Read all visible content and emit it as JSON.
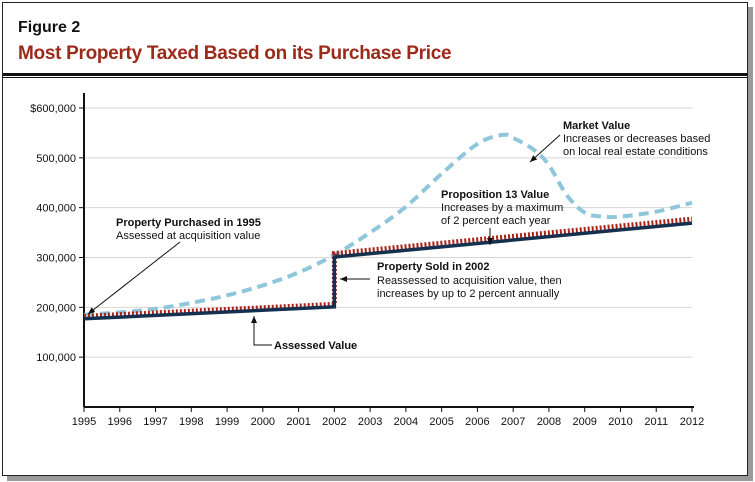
{
  "figure_label": "Figure 2",
  "title": "Most Property Taxed Based on its Purchase Price",
  "chart_data": {
    "type": "line",
    "title": "Most Property Taxed Based on its Purchase Price",
    "xlabel": "",
    "ylabel": "",
    "xlim": [
      1995,
      2012
    ],
    "ylim": [
      0,
      600000
    ],
    "x_ticks": [
      "1995",
      "1996",
      "1997",
      "1998",
      "1999",
      "2000",
      "2001",
      "2002",
      "2003",
      "2004",
      "2005",
      "2006",
      "2007",
      "2008",
      "2009",
      "2010",
      "2011",
      "2012"
    ],
    "y_ticks": [
      {
        "v": 100000,
        "label": "100,000"
      },
      {
        "v": 200000,
        "label": "200,000"
      },
      {
        "v": 300000,
        "label": "300,000"
      },
      {
        "v": 400000,
        "label": "400,000"
      },
      {
        "v": 500000,
        "label": "500,000"
      },
      {
        "v": 600000,
        "label": "$600,000"
      }
    ],
    "grid": "horizontal",
    "series": [
      {
        "name": "Market Value",
        "style": "dashed",
        "color": "#8ec7dc",
        "points": [
          [
            1995,
            185000
          ],
          [
            1996,
            190000
          ],
          [
            1997,
            197000
          ],
          [
            1998,
            209000
          ],
          [
            1999,
            224000
          ],
          [
            2000,
            244000
          ],
          [
            2001,
            270000
          ],
          [
            2002,
            305000
          ],
          [
            2003,
            350000
          ],
          [
            2004,
            402000
          ],
          [
            2005,
            468000
          ],
          [
            2006,
            528000
          ],
          [
            2006.7,
            546000
          ],
          [
            2007,
            540000
          ],
          [
            2007.6,
            515000
          ],
          [
            2008,
            485000
          ],
          [
            2008.5,
            425000
          ],
          [
            2009,
            390000
          ],
          [
            2009.5,
            382000
          ],
          [
            2010,
            382000
          ],
          [
            2011,
            392000
          ],
          [
            2012,
            410000
          ]
        ]
      },
      {
        "name": "Proposition 13 Value",
        "style": "dotted",
        "color": "#a8231a",
        "points": [
          [
            1995,
            182000
          ],
          [
            2002,
            206000
          ],
          [
            2002,
            308000
          ],
          [
            2012,
            377000
          ]
        ]
      },
      {
        "name": "Assessed Value",
        "style": "solid",
        "color": "#14304f",
        "points": [
          [
            1995,
            177000
          ],
          [
            2002,
            201000
          ],
          [
            2002,
            301000
          ],
          [
            2012,
            369000
          ]
        ]
      }
    ],
    "annotations": [
      {
        "bold": "Market Value",
        "text": [
          "Increases or decreases based",
          "on local real estate conditions"
        ]
      },
      {
        "bold": "Proposition 13 Value",
        "text": [
          "Increases by a maximum",
          "of 2 percent each year"
        ]
      },
      {
        "bold": "Property Purchased in 1995",
        "text": [
          "Assessed at acquisition value"
        ]
      },
      {
        "bold": "Property Sold in 2002",
        "text": [
          "Reassessed to acquisition value, then",
          "increases by up to 2 percent annually"
        ]
      },
      {
        "bold": "Assessed Value",
        "text": []
      }
    ]
  }
}
